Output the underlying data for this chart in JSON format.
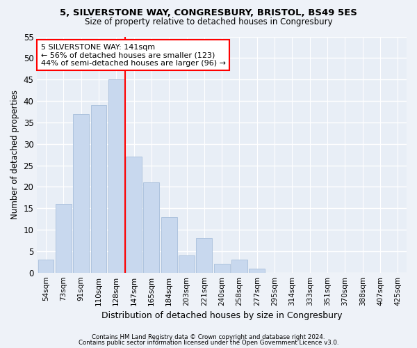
{
  "title1": "5, SILVERSTONE WAY, CONGRESBURY, BRISTOL, BS49 5ES",
  "title2": "Size of property relative to detached houses in Congresbury",
  "xlabel": "Distribution of detached houses by size in Congresbury",
  "ylabel": "Number of detached properties",
  "bar_labels": [
    "54sqm",
    "73sqm",
    "91sqm",
    "110sqm",
    "128sqm",
    "147sqm",
    "165sqm",
    "184sqm",
    "203sqm",
    "221sqm",
    "240sqm",
    "258sqm",
    "277sqm",
    "295sqm",
    "314sqm",
    "333sqm",
    "351sqm",
    "370sqm",
    "388sqm",
    "407sqm",
    "425sqm"
  ],
  "bar_values": [
    3,
    16,
    37,
    39,
    45,
    27,
    21,
    13,
    4,
    8,
    2,
    3,
    1,
    0,
    0,
    0,
    0,
    0,
    0,
    0,
    0
  ],
  "bar_color": "#c8d8ee",
  "bar_edge_color": "#aec4de",
  "vline_x": 4.5,
  "vline_color": "red",
  "annotation_text": "5 SILVERSTONE WAY: 141sqm\n← 56% of detached houses are smaller (123)\n44% of semi-detached houses are larger (96) →",
  "annotation_box_color": "white",
  "annotation_box_edge": "red",
  "ylim": [
    0,
    55
  ],
  "yticks": [
    0,
    5,
    10,
    15,
    20,
    25,
    30,
    35,
    40,
    45,
    50,
    55
  ],
  "footer1": "Contains HM Land Registry data © Crown copyright and database right 2024.",
  "footer2": "Contains public sector information licensed under the Open Government Licence v3.0.",
  "bg_color": "#eef2f8",
  "plot_bg_color": "#e8eef6"
}
